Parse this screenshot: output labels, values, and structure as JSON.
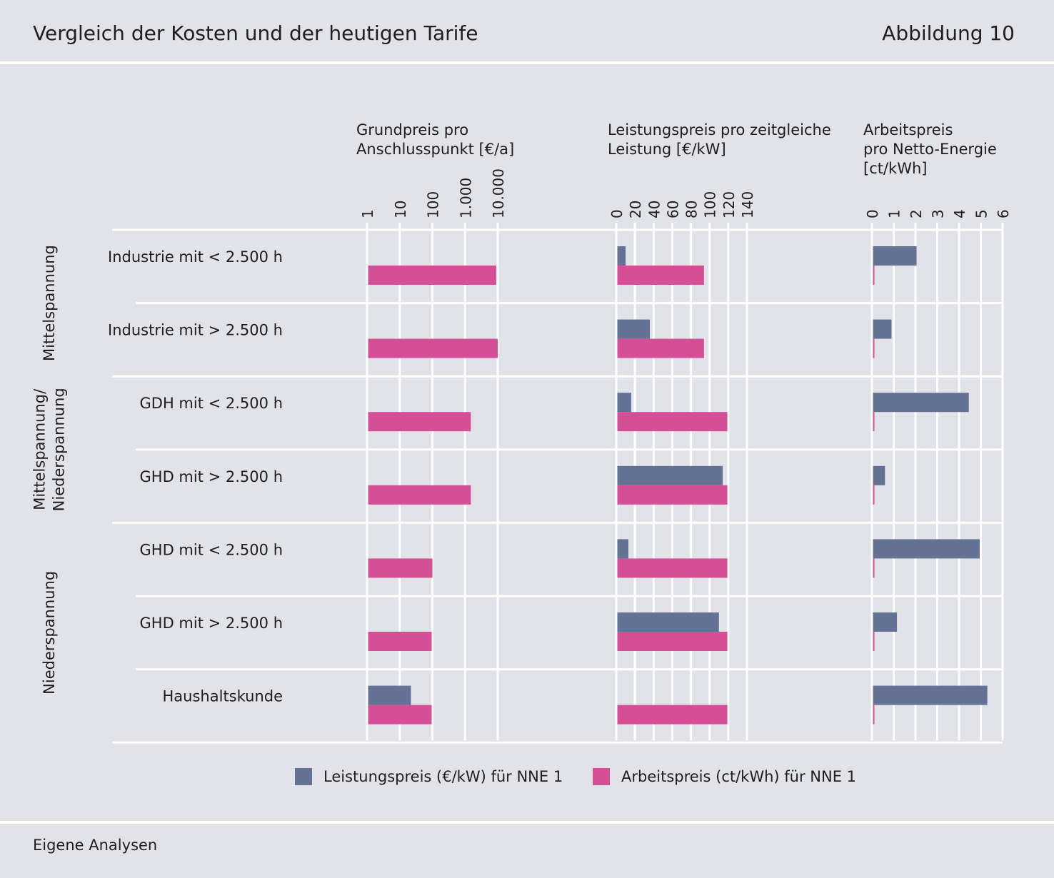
{
  "header": {
    "title": "Vergleich der Kosten und der heutigen Tarife",
    "figure": "Abbildung 10"
  },
  "footer": {
    "source": "Eigene Analysen"
  },
  "colors": {
    "leistung": "#637295",
    "arbeit": "#d54f97",
    "background": "#e2e3e8",
    "grid": "#ffffff"
  },
  "chart_data": {
    "type": "bar",
    "orientation": "horizontal",
    "categories": [
      "Industrie mit < 2.500 h",
      "Industrie mit > 2.500 h",
      "GDH mit < 2.500 h",
      "GHD mit > 2.500 h",
      "GHD mit < 2.500 h",
      "GHD mit > 2.500 h",
      "Haushaltskunde"
    ],
    "groups": [
      {
        "label": "Mittelspannung",
        "rows": [
          0,
          1
        ]
      },
      {
        "label": "Mittelspannung/ Niederspannung",
        "lines": [
          "Mittelspannung/",
          "Niederspannung"
        ],
        "rows": [
          2,
          3
        ]
      },
      {
        "label": "Niederspannung",
        "rows": [
          4,
          5,
          6
        ]
      }
    ],
    "legend": [
      {
        "key": "leistung",
        "label": "Leistungspreis (€/kW) für NNE 1"
      },
      {
        "key": "arbeit",
        "label": "Arbeitspreis (ct/kWh) für NNE 1"
      }
    ],
    "panels": [
      {
        "title_lines": [
          "Grundpreis pro",
          "Anschlusspunkt [€/a]"
        ],
        "scale": "log",
        "xlim": [
          1,
          10000
        ],
        "ticks": [
          1,
          10,
          100,
          1000,
          10000
        ],
        "tick_labels": [
          "1",
          "10",
          "100",
          "1.000",
          "10.000"
        ],
        "series": [
          {
            "key": "leistung",
            "values": [
              null,
              null,
              null,
              null,
              null,
              null,
              22
            ]
          },
          {
            "key": "arbeit",
            "values": [
              9000,
              10000,
              1500,
              1500,
              100,
              95,
              95
            ]
          }
        ]
      },
      {
        "title_lines": [
          "Leistungspreis pro zeitgleiche",
          "Leistung [€/kW]"
        ],
        "scale": "linear",
        "xlim": [
          0,
          140
        ],
        "ticks": [
          0,
          20,
          40,
          60,
          80,
          100,
          120,
          140
        ],
        "tick_labels": [
          "0",
          "20",
          "40",
          "60",
          "80",
          "100",
          "120",
          "140"
        ],
        "series": [
          {
            "key": "leistung",
            "values": [
              10,
              36,
              16,
              114,
              13,
              110,
              null
            ]
          },
          {
            "key": "arbeit",
            "values": [
              94,
              94,
              119,
              119,
              119,
              119,
              119
            ]
          }
        ]
      },
      {
        "title_lines": [
          "Arbeitspreis",
          "pro Netto-Energie",
          "[ct/kWh]"
        ],
        "scale": "linear",
        "xlim": [
          0,
          6
        ],
        "ticks": [
          0,
          1,
          2,
          3,
          4,
          5,
          6
        ],
        "tick_labels": [
          "0",
          "1",
          "2",
          "3",
          "4",
          "5",
          "6"
        ],
        "series": [
          {
            "key": "leistung",
            "values": [
              2.05,
              0.9,
              4.45,
              0.6,
              4.95,
              1.15,
              5.3
            ]
          },
          {
            "key": "arbeit",
            "values": [
              0.05,
              0.05,
              0.05,
              0.05,
              0.05,
              0.05,
              0.05
            ]
          }
        ]
      }
    ]
  }
}
